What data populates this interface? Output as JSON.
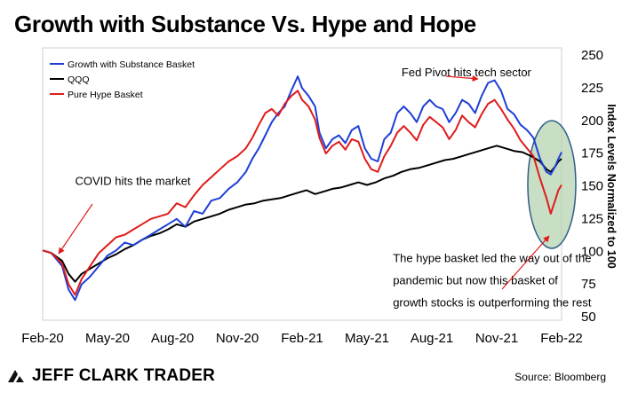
{
  "title": "Growth with Substance Vs. Hype and Hope",
  "brand": "JEFF CLARK TRADER",
  "source": "Source: Bloomberg",
  "chart_data": {
    "type": "line",
    "ylabel": "Index Levels Normalized to 100",
    "ylim": [
      50,
      250
    ],
    "yticks": [
      50,
      75,
      100,
      125,
      150,
      175,
      200,
      225,
      250
    ],
    "xlim": [
      0,
      24
    ],
    "xticks": [
      {
        "x": 0,
        "label": "Feb-20"
      },
      {
        "x": 3,
        "label": "May-20"
      },
      {
        "x": 6,
        "label": "Aug-20"
      },
      {
        "x": 9,
        "label": "Nov-20"
      },
      {
        "x": 12,
        "label": "Feb-21"
      },
      {
        "x": 15,
        "label": "May-21"
      },
      {
        "x": 18,
        "label": "Aug-21"
      },
      {
        "x": 21,
        "label": "Nov-21"
      },
      {
        "x": 24,
        "label": "Feb-22"
      }
    ],
    "grid": false,
    "legend_position": "top-left",
    "series": [
      {
        "name": "Growth with Substance Basket",
        "color": "#1f3fd6",
        "points": [
          [
            0,
            100
          ],
          [
            0.4,
            98
          ],
          [
            0.9,
            88
          ],
          [
            1.2,
            70
          ],
          [
            1.5,
            62
          ],
          [
            1.8,
            74
          ],
          [
            2.2,
            80
          ],
          [
            2.6,
            88
          ],
          [
            3,
            96
          ],
          [
            3.4,
            100
          ],
          [
            3.8,
            106
          ],
          [
            4.2,
            104
          ],
          [
            4.6,
            108
          ],
          [
            5,
            112
          ],
          [
            5.4,
            116
          ],
          [
            5.8,
            120
          ],
          [
            6.2,
            124
          ],
          [
            6.6,
            118
          ],
          [
            7,
            130
          ],
          [
            7.4,
            128
          ],
          [
            7.8,
            138
          ],
          [
            8.2,
            140
          ],
          [
            8.6,
            147
          ],
          [
            9,
            152
          ],
          [
            9.4,
            160
          ],
          [
            9.7,
            170
          ],
          [
            10,
            178
          ],
          [
            10.3,
            188
          ],
          [
            10.6,
            198
          ],
          [
            10.9,
            205
          ],
          [
            11.2,
            210
          ],
          [
            11.5,
            222
          ],
          [
            11.8,
            233
          ],
          [
            12,
            224
          ],
          [
            12.3,
            218
          ],
          [
            12.6,
            210
          ],
          [
            12.8,
            190
          ],
          [
            13.1,
            178
          ],
          [
            13.4,
            185
          ],
          [
            13.7,
            188
          ],
          [
            14,
            182
          ],
          [
            14.3,
            192
          ],
          [
            14.6,
            195
          ],
          [
            14.9,
            178
          ],
          [
            15.2,
            170
          ],
          [
            15.5,
            168
          ],
          [
            15.8,
            185
          ],
          [
            16.1,
            190
          ],
          [
            16.4,
            205
          ],
          [
            16.7,
            210
          ],
          [
            17,
            205
          ],
          [
            17.3,
            198
          ],
          [
            17.6,
            210
          ],
          [
            17.9,
            215
          ],
          [
            18.2,
            210
          ],
          [
            18.5,
            208
          ],
          [
            18.8,
            198
          ],
          [
            19.1,
            205
          ],
          [
            19.4,
            215
          ],
          [
            19.7,
            212
          ],
          [
            20,
            205
          ],
          [
            20.3,
            218
          ],
          [
            20.6,
            228
          ],
          [
            20.9,
            230
          ],
          [
            21.2,
            222
          ],
          [
            21.5,
            208
          ],
          [
            21.8,
            204
          ],
          [
            22.1,
            196
          ],
          [
            22.4,
            192
          ],
          [
            22.7,
            186
          ],
          [
            23,
            170
          ],
          [
            23.3,
            160
          ],
          [
            23.5,
            158
          ],
          [
            23.7,
            164
          ],
          [
            23.85,
            170
          ],
          [
            24,
            175
          ]
        ]
      },
      {
        "name": "QQQ",
        "color": "#000000",
        "points": [
          [
            0,
            100
          ],
          [
            0.4,
            98
          ],
          [
            0.9,
            92
          ],
          [
            1.2,
            82
          ],
          [
            1.5,
            76
          ],
          [
            1.8,
            82
          ],
          [
            2.2,
            86
          ],
          [
            2.6,
            90
          ],
          [
            3,
            94
          ],
          [
            3.4,
            97
          ],
          [
            3.8,
            101
          ],
          [
            4.2,
            104
          ],
          [
            4.6,
            108
          ],
          [
            5,
            111
          ],
          [
            5.4,
            113
          ],
          [
            5.8,
            116
          ],
          [
            6.2,
            120
          ],
          [
            6.6,
            118
          ],
          [
            7,
            122
          ],
          [
            7.4,
            124
          ],
          [
            7.8,
            126
          ],
          [
            8.2,
            128
          ],
          [
            8.6,
            131
          ],
          [
            9,
            133
          ],
          [
            9.4,
            135
          ],
          [
            9.8,
            136
          ],
          [
            10.2,
            138
          ],
          [
            10.6,
            139
          ],
          [
            11,
            140
          ],
          [
            11.4,
            142
          ],
          [
            11.8,
            144
          ],
          [
            12.2,
            146
          ],
          [
            12.6,
            143
          ],
          [
            13,
            145
          ],
          [
            13.4,
            147
          ],
          [
            13.8,
            148
          ],
          [
            14.2,
            150
          ],
          [
            14.6,
            152
          ],
          [
            15,
            150
          ],
          [
            15.4,
            152
          ],
          [
            15.8,
            155
          ],
          [
            16.2,
            157
          ],
          [
            16.6,
            160
          ],
          [
            17,
            162
          ],
          [
            17.4,
            163
          ],
          [
            17.8,
            165
          ],
          [
            18.2,
            167
          ],
          [
            18.6,
            169
          ],
          [
            19,
            170
          ],
          [
            19.4,
            172
          ],
          [
            19.8,
            174
          ],
          [
            20.2,
            176
          ],
          [
            20.6,
            178
          ],
          [
            21,
            180
          ],
          [
            21.4,
            178
          ],
          [
            21.8,
            176
          ],
          [
            22.2,
            175
          ],
          [
            22.6,
            172
          ],
          [
            23,
            168
          ],
          [
            23.3,
            162
          ],
          [
            23.5,
            160
          ],
          [
            23.7,
            164
          ],
          [
            23.85,
            168
          ],
          [
            24,
            170
          ]
        ]
      },
      {
        "name": "Pure Hype Basket",
        "color": "#e01b1b",
        "points": [
          [
            0,
            100
          ],
          [
            0.4,
            98
          ],
          [
            0.9,
            90
          ],
          [
            1.2,
            74
          ],
          [
            1.5,
            66
          ],
          [
            1.8,
            78
          ],
          [
            2.2,
            88
          ],
          [
            2.6,
            98
          ],
          [
            3,
            104
          ],
          [
            3.4,
            110
          ],
          [
            3.8,
            112
          ],
          [
            4.2,
            116
          ],
          [
            4.6,
            120
          ],
          [
            5,
            124
          ],
          [
            5.4,
            126
          ],
          [
            5.8,
            128
          ],
          [
            6.2,
            136
          ],
          [
            6.6,
            133
          ],
          [
            7,
            142
          ],
          [
            7.4,
            150
          ],
          [
            7.8,
            156
          ],
          [
            8.2,
            162
          ],
          [
            8.6,
            168
          ],
          [
            9,
            172
          ],
          [
            9.4,
            178
          ],
          [
            9.7,
            186
          ],
          [
            10,
            196
          ],
          [
            10.3,
            205
          ],
          [
            10.6,
            208
          ],
          [
            10.9,
            203
          ],
          [
            11.2,
            212
          ],
          [
            11.5,
            218
          ],
          [
            11.8,
            222
          ],
          [
            12,
            215
          ],
          [
            12.3,
            210
          ],
          [
            12.6,
            200
          ],
          [
            12.8,
            186
          ],
          [
            13.1,
            174
          ],
          [
            13.4,
            180
          ],
          [
            13.7,
            183
          ],
          [
            14,
            177
          ],
          [
            14.3,
            185
          ],
          [
            14.6,
            183
          ],
          [
            14.9,
            170
          ],
          [
            15.2,
            162
          ],
          [
            15.5,
            160
          ],
          [
            15.8,
            172
          ],
          [
            16.1,
            180
          ],
          [
            16.4,
            190
          ],
          [
            16.7,
            195
          ],
          [
            17,
            190
          ],
          [
            17.3,
            184
          ],
          [
            17.6,
            196
          ],
          [
            17.9,
            202
          ],
          [
            18.2,
            198
          ],
          [
            18.5,
            194
          ],
          [
            18.8,
            185
          ],
          [
            19.1,
            192
          ],
          [
            19.4,
            203
          ],
          [
            19.7,
            198
          ],
          [
            20,
            194
          ],
          [
            20.3,
            204
          ],
          [
            20.6,
            212
          ],
          [
            20.9,
            215
          ],
          [
            21.2,
            208
          ],
          [
            21.5,
            200
          ],
          [
            21.8,
            193
          ],
          [
            22.1,
            184
          ],
          [
            22.4,
            178
          ],
          [
            22.7,
            172
          ],
          [
            23,
            155
          ],
          [
            23.3,
            140
          ],
          [
            23.5,
            128
          ],
          [
            23.7,
            138
          ],
          [
            23.85,
            146
          ],
          [
            24,
            150
          ]
        ]
      }
    ],
    "annotations": [
      {
        "text": "Fed Pivot hits tech sector",
        "x": 16.6,
        "y": 233
      },
      {
        "text": "COVID hits the market",
        "x": 1.5,
        "y": 150
      },
      {
        "text": "The hype basket led the way out of the",
        "x": 16.2,
        "y": 91
      },
      {
        "text": "pandemic but now this basket of",
        "x": 16.2,
        "y": 74
      },
      {
        "text": "growth stocks is outperforming the rest",
        "x": 16.2,
        "y": 57
      }
    ]
  }
}
